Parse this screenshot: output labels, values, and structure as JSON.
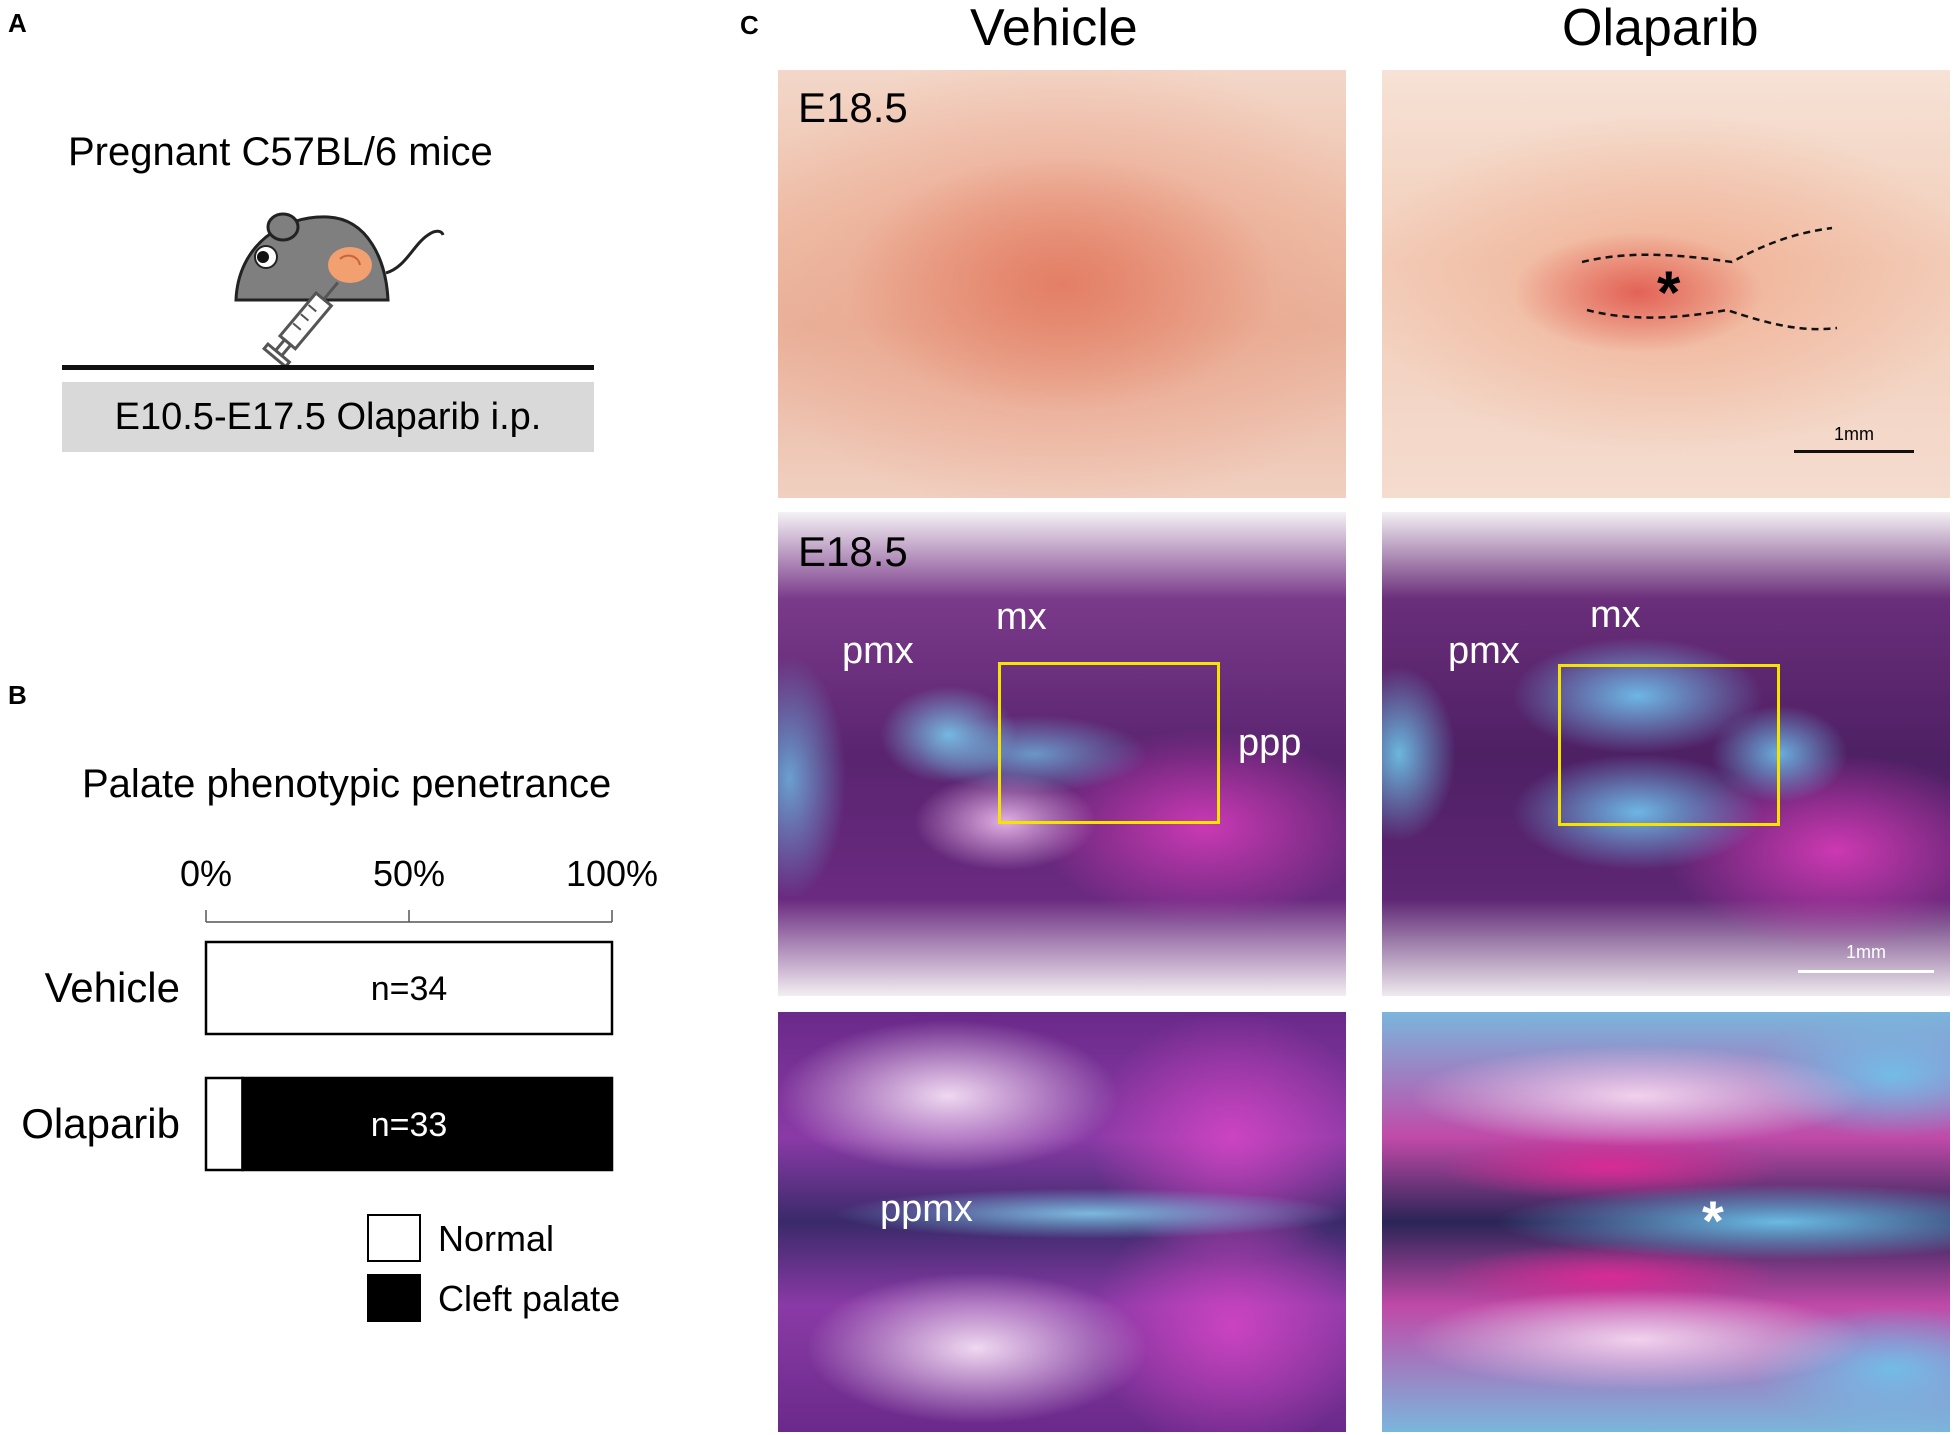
{
  "panels": {
    "a": "A",
    "b": "B",
    "c": "C"
  },
  "panel_a": {
    "title": "Pregnant C57BL/6 mice",
    "treatment": "E10.5-E17.5 Olaparib i.p."
  },
  "panel_b": {
    "title": "Palate phenotypic penetrance",
    "legend": {
      "normal": "Normal",
      "cleft": "Cleft palate"
    },
    "chart_data": {
      "type": "bar",
      "orientation": "horizontal",
      "stacked": true,
      "title": "Palate phenotypic penetrance",
      "ticks": [
        "0%",
        "50%",
        "100%"
      ],
      "xlim": [
        0,
        100
      ],
      "categories": [
        "Vehicle",
        "Olaparib"
      ],
      "n_labels": [
        "n=34",
        "n=33"
      ],
      "series": [
        {
          "name": "Normal",
          "values": [
            100,
            9
          ],
          "color": "#ffffff"
        },
        {
          "name": "Cleft palate",
          "values": [
            0,
            91
          ],
          "color": "#000000"
        }
      ],
      "legend_position": "bottom-right"
    }
  },
  "panel_c": {
    "col_vehicle": "Vehicle",
    "col_olaparib": "Olaparib",
    "stage_top": "E18.5",
    "stage_mid": "E18.5",
    "scale_top": "1mm",
    "scale_mid": "1mm",
    "labels": {
      "pmx_v": "pmx",
      "mx_v": "mx",
      "ppp_v": "ppp",
      "pmx_o": "pmx",
      "mx_o": "mx",
      "ppmx": "ppmx",
      "star_top": "*",
      "star_bottom": "*"
    }
  }
}
